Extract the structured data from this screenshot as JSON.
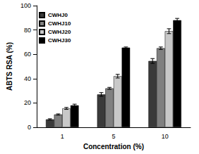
{
  "chart_data": {
    "type": "bar",
    "x_label": "Concentration (%)",
    "y_label": "ABTS RSA (%)",
    "categories": [
      "1",
      "5",
      "10"
    ],
    "series": [
      {
        "name": "CWHJ0",
        "color": "#3a3a3a",
        "values": [
          6.5,
          27,
          54.5
        ],
        "errors": [
          0.5,
          1.5,
          2
        ]
      },
      {
        "name": "CWHJ10",
        "color": "#808080",
        "values": [
          10.5,
          32,
          65
        ],
        "errors": [
          0.5,
          0.8,
          1
        ]
      },
      {
        "name": "CWHJ20",
        "color": "#c8c8c8",
        "values": [
          15.5,
          42,
          79
        ],
        "errors": [
          0.8,
          1.5,
          2
        ]
      },
      {
        "name": "CWHJ30",
        "color": "#000000",
        "values": [
          18,
          65.5,
          88
        ],
        "errors": [
          1,
          0.5,
          1.5
        ]
      }
    ],
    "ylim": [
      0,
      100
    ],
    "yticks": [
      0,
      20,
      40,
      60,
      80,
      100
    ],
    "legend": "upper left",
    "grid": false
  }
}
